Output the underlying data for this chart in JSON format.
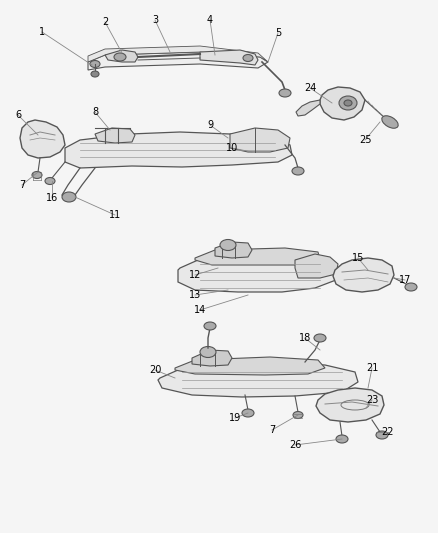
{
  "background_color": "#f5f5f5",
  "fig_width": 4.38,
  "fig_height": 5.33,
  "dpi": 100,
  "label_font_size": 7,
  "text_color": "#000000",
  "line_color": "#888888",
  "part_edge_color": "#555555",
  "part_face_color": "#d8d8d8",
  "part_face_light": "#eeeeee",
  "part_face_dark": "#b0b0b0"
}
